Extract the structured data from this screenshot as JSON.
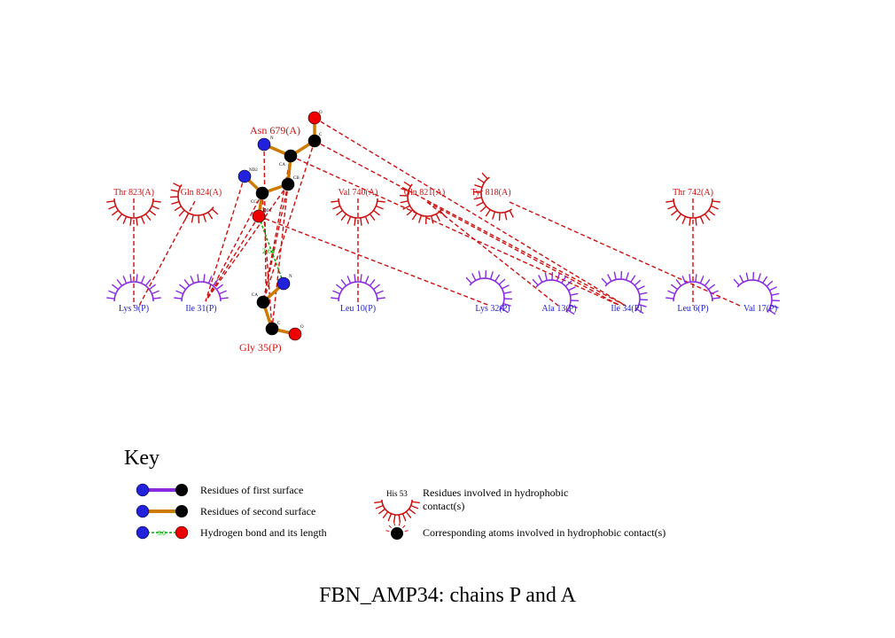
{
  "colors": {
    "first_surface": "#8a2be2",
    "second_surface": "#cc7a00",
    "hbond": "#00aa00",
    "hydrophobic": "#cc1111",
    "first_label": "#2222cc",
    "second_label": "#cc1111",
    "atom_black": "#000000",
    "atom_blue": "#2222dd",
    "atom_red": "#ee0000"
  },
  "residues_A": [
    {
      "label": "Thr 823(A)"
    },
    {
      "label": "Gln 824(A)"
    },
    {
      "label": "Val 740(A)"
    },
    {
      "label": "Gln 821(A)"
    },
    {
      "label": "Tyr 818(A)"
    },
    {
      "label": "Thr 742(A)"
    }
  ],
  "residues_P": [
    {
      "label": "Lys 9(P)"
    },
    {
      "label": "Ile 31(P)"
    },
    {
      "label": "Leu 10(P)"
    },
    {
      "label": "Lys 32(P)"
    },
    {
      "label": "Ala 13(P)"
    },
    {
      "label": "Ile 34(P)"
    },
    {
      "label": "Leu 6(P)"
    },
    {
      "label": "Val 17(P)"
    }
  ],
  "bonded_residues": {
    "asn_label": "Asn 679(A)",
    "gly_label": "Gly 35(P)",
    "atom_labels": {
      "o_top": "O",
      "c_top": "C",
      "n_top": "N",
      "ca_top": "CA",
      "nd2": "ND2",
      "cb": "CB",
      "cg": "CG",
      "od1": "OD1",
      "n_bot": "N",
      "ca_bot": "CA",
      "c_bot": "C",
      "o_bot": "O"
    }
  },
  "hbond_length": "2.64",
  "key": {
    "title": "Key",
    "first_surface": "Residues of first surface",
    "second_surface": "Residues of second surface",
    "hbond": "Hydrogen bond and its length",
    "hbond_sample": "3.0",
    "hydrophobic_sample": "His 53",
    "hydrophobic_line1": "Residues involved in hydrophobic",
    "hydrophobic_line2": "contact(s)",
    "corresponding_atoms": "Corresponding atoms involved in hydrophobic contact(s)"
  },
  "caption": "FBN_AMP34: chains P and A"
}
